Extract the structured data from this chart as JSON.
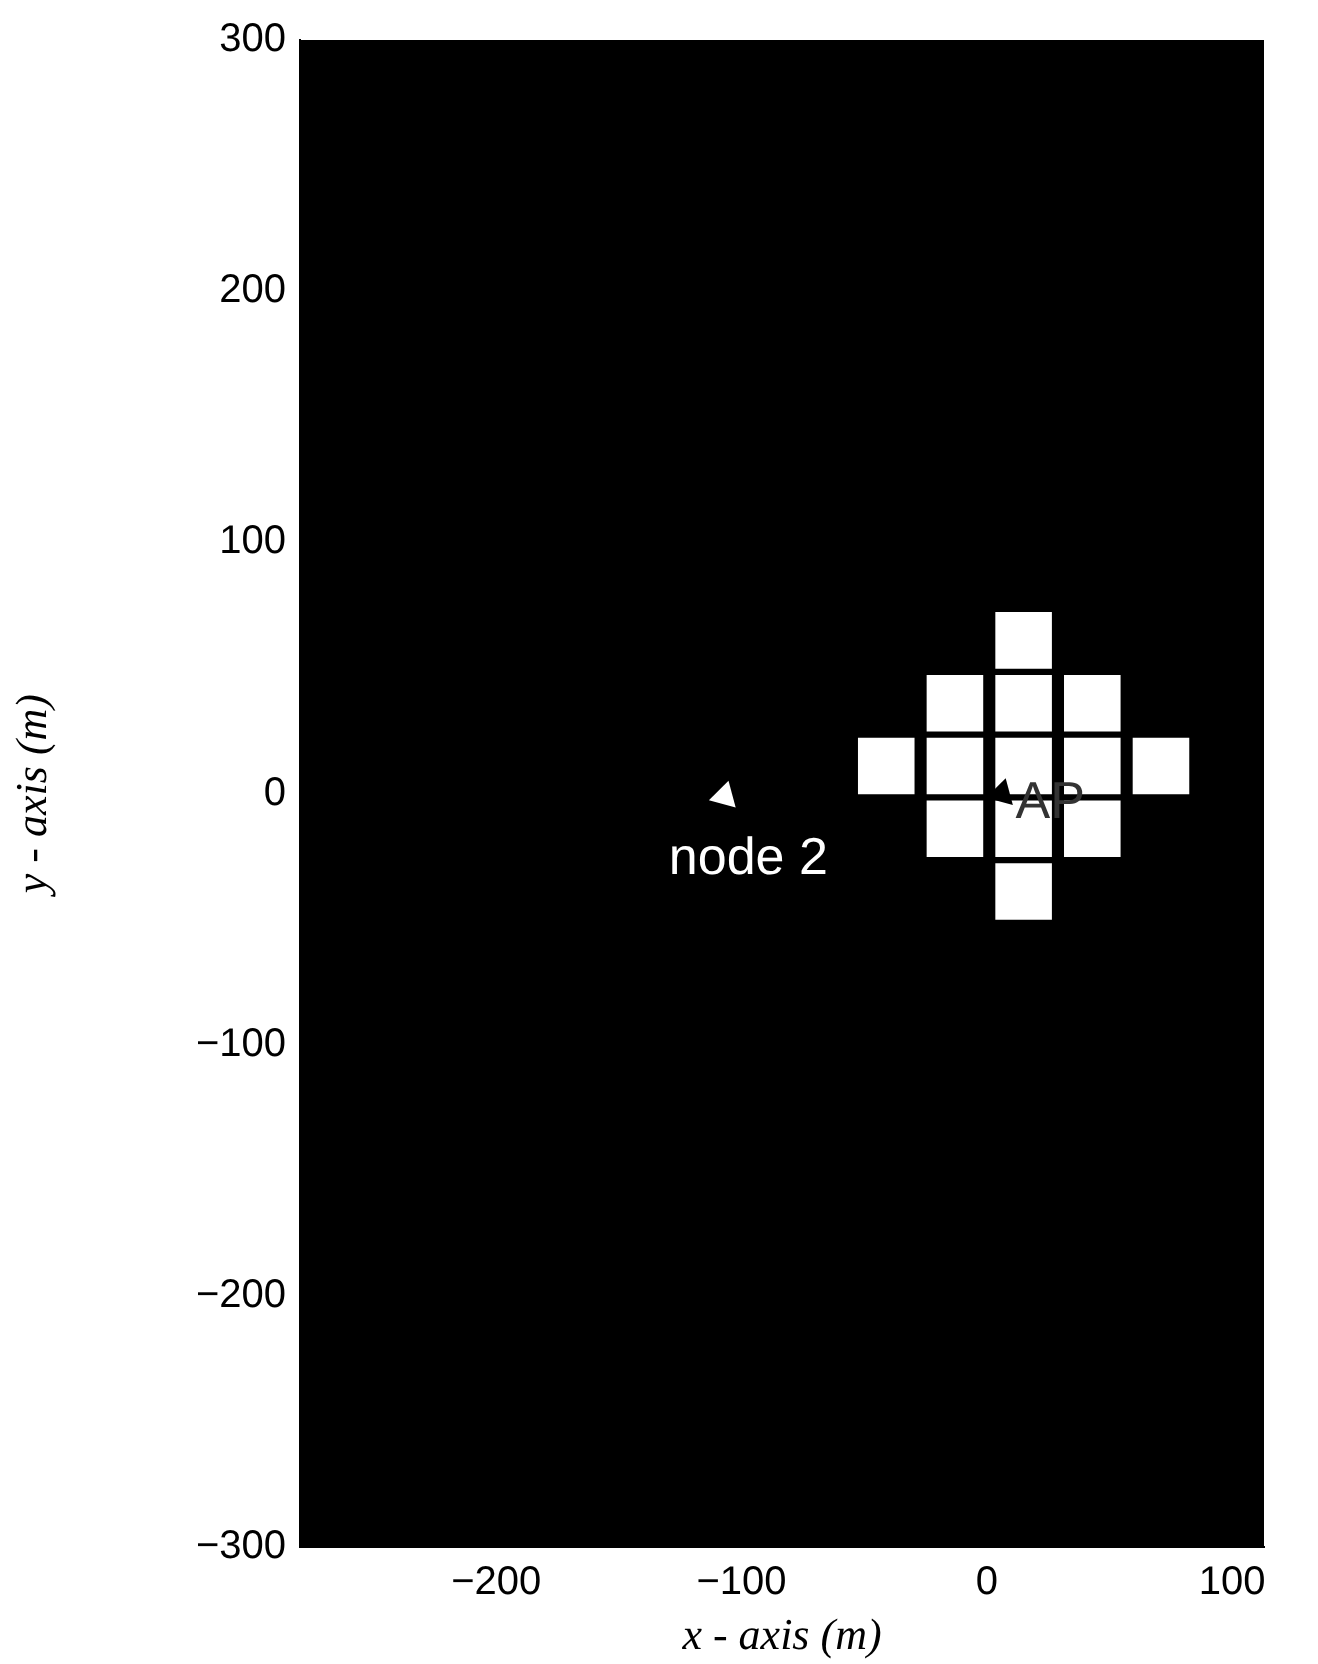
{
  "chart_data": {
    "type": "scatter",
    "xlabel": "x - axis (m)",
    "ylabel": "y - axis (m)",
    "xlim": [
      -280,
      113
    ],
    "xticks": [
      -200,
      -100,
      0,
      100
    ],
    "ylim": [
      -300,
      300
    ],
    "yticks": [
      -300,
      -200,
      -100,
      0,
      100,
      200,
      300
    ],
    "grid": false,
    "legend": false,
    "series": [
      {
        "marker": "square",
        "color": "#ffffff",
        "x": [
          15,
          -13,
          15,
          43,
          -41,
          -13,
          15,
          43,
          71,
          -13,
          15,
          43,
          15
        ],
        "values": [
          61,
          36,
          36,
          36,
          11,
          11,
          11,
          11,
          11,
          -14,
          -14,
          -14,
          -39
        ]
      },
      {
        "marker": "triangle",
        "colors": [
          "#ffffff",
          "#000000"
        ],
        "x": [
          -107,
          6
        ],
        "values": [
          -1,
          0
        ]
      }
    ],
    "annotations": [
      "node 2",
      "AP"
    ]
  }
}
